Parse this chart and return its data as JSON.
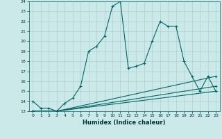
{
  "xlabel": "Humidex (Indice chaleur)",
  "xlim": [
    -0.5,
    23.5
  ],
  "ylim": [
    13,
    24
  ],
  "yticks": [
    13,
    14,
    15,
    16,
    17,
    18,
    19,
    20,
    21,
    22,
    23,
    24
  ],
  "xticks": [
    0,
    1,
    2,
    3,
    4,
    5,
    6,
    7,
    8,
    9,
    10,
    11,
    12,
    13,
    14,
    15,
    16,
    17,
    18,
    19,
    20,
    21,
    22,
    23
  ],
  "background_color": "#cce9e9",
  "grid_color": "#b0cfcf",
  "line_color": "#006666",
  "lines": [
    {
      "x": [
        0,
        1,
        2,
        3,
        4,
        5,
        6,
        7,
        8,
        9,
        10,
        11,
        12,
        13,
        14,
        15,
        16,
        17,
        18,
        19,
        20,
        21,
        22,
        23
      ],
      "y": [
        14,
        13.3,
        13.3,
        13,
        13.8,
        14.3,
        15.5,
        19.0,
        19.5,
        20.5,
        23.5,
        24,
        17.3,
        17.5,
        17.8,
        20.0,
        22.0,
        21.5,
        21.5,
        18.0,
        16.5,
        15.0,
        16.5,
        15.0
      ]
    },
    {
      "x": [
        0,
        3,
        23
      ],
      "y": [
        13,
        13,
        16.5
      ]
    },
    {
      "x": [
        0,
        3,
        23
      ],
      "y": [
        13,
        13,
        15.5
      ]
    },
    {
      "x": [
        0,
        3,
        23
      ],
      "y": [
        13,
        13,
        15.0
      ]
    }
  ]
}
